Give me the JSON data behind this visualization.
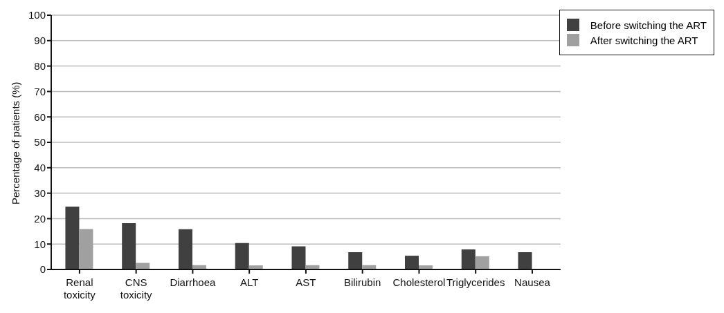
{
  "chart_data": {
    "type": "bar",
    "ylabel": "Percentage of patients (%)",
    "categories": [
      "Renal toxicity",
      "CNS toxicity",
      "Diarrhoea",
      "ALT",
      "AST",
      "Bilirubin",
      "Cholesterol",
      "Triglycerides",
      "Nausea"
    ],
    "series": [
      {
        "name": "Before switching the ART",
        "color": "#404040",
        "values": [
          24.7,
          18.2,
          15.8,
          10.4,
          9.1,
          6.8,
          5.4,
          7.9,
          6.8
        ]
      },
      {
        "name": "After switching the ART",
        "color": "#a0a0a0",
        "values": [
          15.9,
          2.6,
          1.7,
          1.6,
          1.7,
          1.7,
          1.6,
          5.2,
          0
        ]
      }
    ],
    "ylim": [
      0,
      100
    ],
    "yticks": [
      0,
      10,
      20,
      30,
      40,
      50,
      60,
      70,
      80,
      90,
      100
    ],
    "grid": "y",
    "legend": "top right"
  }
}
